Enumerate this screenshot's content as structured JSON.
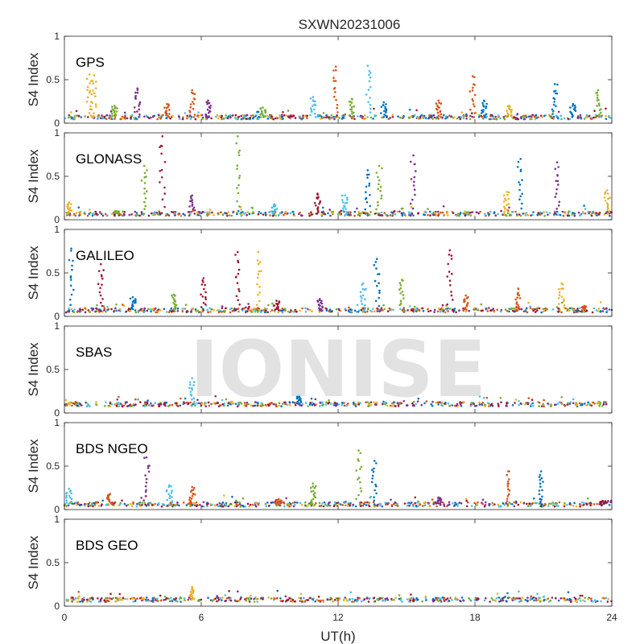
{
  "figure": {
    "title": "SXWN20231006",
    "watermark": "IONISE"
  },
  "chart_data": {
    "type": "scatter",
    "xlabel": "UT(h)",
    "ylabel": "S4 Index",
    "xlim": [
      0,
      24
    ],
    "ylim": [
      0,
      1
    ],
    "xticks": [
      0,
      6,
      12,
      18,
      24
    ],
    "yticks": [
      0,
      0.5,
      1
    ],
    "ytick_labels": [
      "0",
      "0.5",
      "1"
    ],
    "grid": false,
    "series_colors": [
      "#0072BD",
      "#D95319",
      "#EDB120",
      "#7E2F8E",
      "#77AC30",
      "#4DBEEE",
      "#A2142F"
    ],
    "panels": [
      {
        "label": "GPS",
        "baseline": 0.07,
        "peaks": [
          [
            1.1,
            0.56,
            2
          ],
          [
            1.3,
            0.55,
            2
          ],
          [
            2.2,
            0.2,
            4
          ],
          [
            3.2,
            0.4,
            3
          ],
          [
            4.5,
            0.22,
            1
          ],
          [
            5.6,
            0.38,
            1
          ],
          [
            6.3,
            0.26,
            3
          ],
          [
            8.7,
            0.18,
            4
          ],
          [
            10.9,
            0.3,
            5
          ],
          [
            11.9,
            0.65,
            1
          ],
          [
            12.6,
            0.28,
            4
          ],
          [
            13.3,
            0.66,
            5
          ],
          [
            14.0,
            0.24,
            0
          ],
          [
            16.4,
            0.26,
            1
          ],
          [
            17.9,
            0.54,
            1
          ],
          [
            18.4,
            0.26,
            0
          ],
          [
            19.5,
            0.2,
            2
          ],
          [
            21.5,
            0.45,
            0
          ],
          [
            22.3,
            0.22,
            0
          ],
          [
            23.4,
            0.38,
            4
          ]
        ]
      },
      {
        "label": "GLONASS",
        "baseline": 0.07,
        "peaks": [
          [
            0.2,
            0.2,
            2
          ],
          [
            2.3,
            0.1,
            4
          ],
          [
            3.5,
            0.62,
            4
          ],
          [
            4.3,
            0.96,
            6
          ],
          [
            5.6,
            0.28,
            3
          ],
          [
            7.6,
            0.96,
            4
          ],
          [
            9.2,
            0.18,
            5
          ],
          [
            11.1,
            0.3,
            6
          ],
          [
            12.3,
            0.28,
            5
          ],
          [
            13.3,
            0.57,
            0
          ],
          [
            13.8,
            0.62,
            4
          ],
          [
            15.3,
            0.74,
            3
          ],
          [
            19.4,
            0.32,
            2
          ],
          [
            20.0,
            0.7,
            0
          ],
          [
            21.6,
            0.66,
            3
          ],
          [
            23.8,
            0.34,
            2
          ]
        ]
      },
      {
        "label": "GALILEO",
        "baseline": 0.07,
        "peaks": [
          [
            0.3,
            0.78,
            0
          ],
          [
            1.6,
            0.6,
            6
          ],
          [
            3.0,
            0.22,
            0
          ],
          [
            4.8,
            0.25,
            4
          ],
          [
            6.1,
            0.44,
            6
          ],
          [
            7.6,
            0.74,
            6
          ],
          [
            8.5,
            0.74,
            2
          ],
          [
            9.3,
            0.18,
            6
          ],
          [
            11.2,
            0.2,
            3
          ],
          [
            13.1,
            0.38,
            5
          ],
          [
            13.7,
            0.66,
            0
          ],
          [
            14.8,
            0.42,
            4
          ],
          [
            16.9,
            0.76,
            6
          ],
          [
            17.6,
            0.24,
            1
          ],
          [
            19.9,
            0.32,
            1
          ],
          [
            21.8,
            0.38,
            2
          ],
          [
            22.8,
            0.12,
            1
          ]
        ]
      },
      {
        "label": "SBAS",
        "baseline": 0.1,
        "peaks": [
          [
            5.6,
            0.4,
            5
          ],
          [
            10.3,
            0.2,
            0
          ]
        ]
      },
      {
        "label": "BDS NGEO",
        "baseline": 0.06,
        "peaks": [
          [
            0.2,
            0.24,
            5
          ],
          [
            2.0,
            0.18,
            1
          ],
          [
            3.6,
            0.6,
            3
          ],
          [
            4.6,
            0.28,
            5
          ],
          [
            5.6,
            0.26,
            1
          ],
          [
            9.4,
            0.12,
            1
          ],
          [
            10.9,
            0.3,
            4
          ],
          [
            12.9,
            0.68,
            4
          ],
          [
            13.6,
            0.56,
            0
          ],
          [
            16.4,
            0.14,
            3
          ],
          [
            19.5,
            0.44,
            1
          ],
          [
            20.9,
            0.44,
            0
          ],
          [
            23.6,
            0.1,
            6
          ]
        ]
      },
      {
        "label": "BDS GEO",
        "baseline": 0.075,
        "peaks": [
          [
            5.6,
            0.22,
            2
          ]
        ]
      }
    ]
  }
}
